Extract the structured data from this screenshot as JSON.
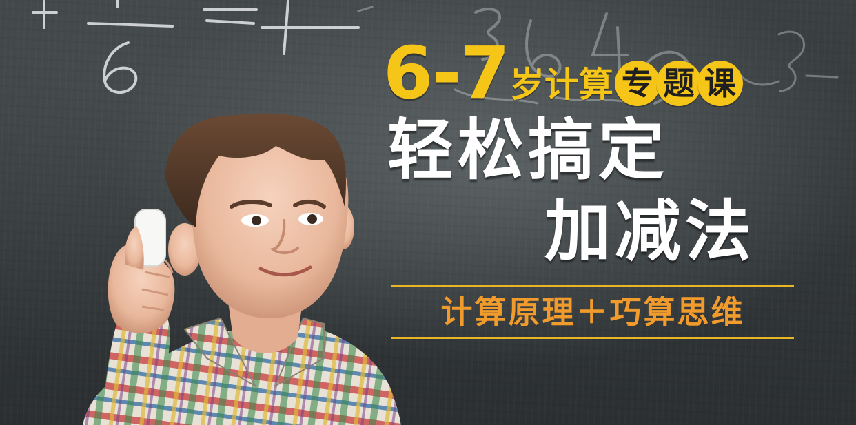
{
  "banner": {
    "age_range": "6-7",
    "age_suffix": "岁计算",
    "badge_chars": [
      "专",
      "题",
      "课"
    ],
    "title_line_1": "轻松搞定",
    "title_line_2": "加减法",
    "subtitle": "计算原理＋巧算思维"
  },
  "colors": {
    "chalkboard": "#34393b",
    "accent_yellow": "#f5c518",
    "subtitle_orange": "#f09b2c",
    "rule_gold": "#e8b525",
    "title_white": "#ffffff"
  }
}
